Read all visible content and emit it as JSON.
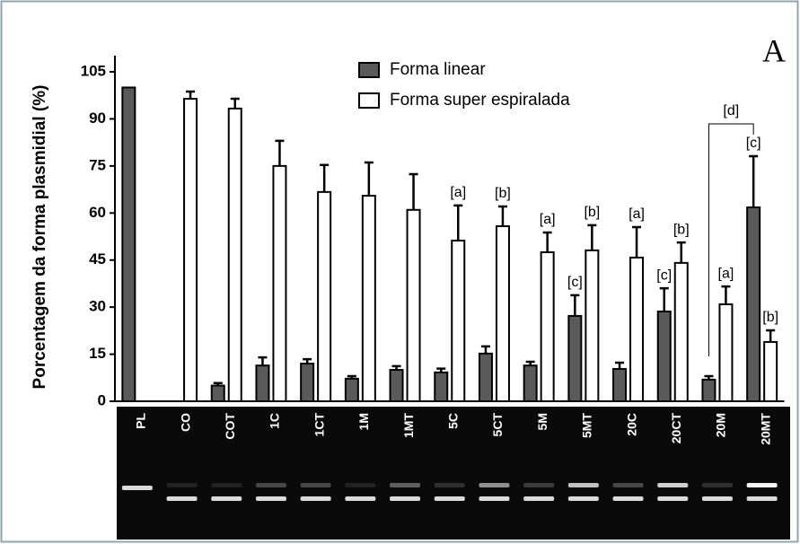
{
  "chart_data": {
    "type": "bar",
    "panel_label": "A",
    "y_label": "Porcentagem da forma plasmidial (%)",
    "categories": [
      "PL",
      "CO",
      "COT",
      "1C",
      "1CT",
      "1M",
      "1MT",
      "5C",
      "5CT",
      "5M",
      "5MT",
      "20C",
      "20CT",
      "20M",
      "20MT"
    ],
    "series": [
      {
        "name": "Forma linear",
        "color": "#5a5a5a",
        "values": [
          100,
          null,
          5,
          11.4,
          12,
          7.2,
          10,
          9.2,
          15.2,
          11.4,
          27.2,
          10.3,
          28.6,
          6.9,
          61.8
        ],
        "errors": [
          null,
          null,
          0.8,
          2.6,
          1.4,
          0.8,
          1.2,
          1.2,
          2.3,
          1.2,
          6.6,
          2,
          7.4,
          1.1,
          16.3
        ]
      },
      {
        "name": "Forma super espiralada",
        "color": "#ffffff",
        "values": [
          null,
          96.4,
          93.3,
          75,
          66.7,
          65.5,
          61,
          51.2,
          55.8,
          47.5,
          48.1,
          45.8,
          44.1,
          30.9,
          18.9
        ],
        "errors": [
          null,
          2.3,
          3.1,
          8,
          8.6,
          10.6,
          11.4,
          11.2,
          6.3,
          6.3,
          8,
          9.7,
          6.5,
          5.7,
          3.7
        ]
      }
    ],
    "annotations": [
      {
        "text": "[a]",
        "category": "5C",
        "series": "Forma super espiralada"
      },
      {
        "text": "[b]",
        "category": "5CT",
        "series": "Forma super espiralada"
      },
      {
        "text": "[a]",
        "category": "5M",
        "series": "Forma super espiralada"
      },
      {
        "text": "[c]",
        "category": "5MT",
        "series": "Forma linear"
      },
      {
        "text": "[b]",
        "category": "5MT",
        "series": "Forma super espiralada"
      },
      {
        "text": "[a]",
        "category": "20C",
        "series": "Forma super espiralada"
      },
      {
        "text": "[c]",
        "category": "20CT",
        "series": "Forma linear"
      },
      {
        "text": "[b]",
        "category": "20CT",
        "series": "Forma super espiralada"
      },
      {
        "text": "[a]",
        "category": "20M",
        "series": "Forma super espiralada"
      },
      {
        "text": "[c]",
        "category": "20MT",
        "series": "Forma linear"
      },
      {
        "text": "[b]",
        "category": "20MT",
        "series": "Forma super espiralada"
      },
      {
        "text": "[d]",
        "bracket": [
          "20M",
          "20MT"
        ]
      }
    ],
    "ylim": [
      0,
      105
    ],
    "yticks": [
      0,
      15,
      30,
      45,
      60,
      75,
      90,
      105
    ],
    "grid": false
  }
}
